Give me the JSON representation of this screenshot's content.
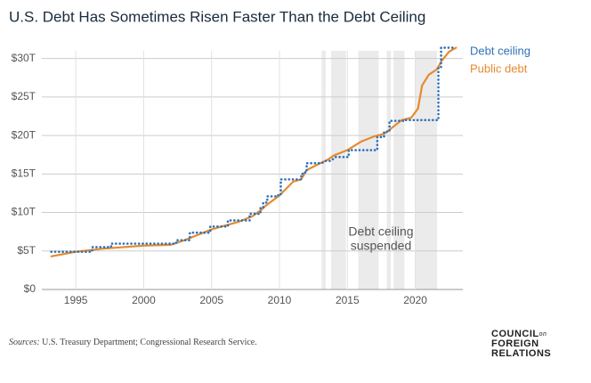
{
  "chart_data": {
    "type": "line",
    "title": "U.S. Debt Has Sometimes Risen Faster Than the Debt Ceiling",
    "xlim": [
      1992.5,
      2023.5
    ],
    "xticks": [
      1995,
      2000,
      2005,
      2010,
      2015,
      2020
    ],
    "ylim": [
      0,
      31
    ],
    "yticks": [
      {
        "value": 0,
        "label": "$0"
      },
      {
        "value": 5,
        "label": "$5T"
      },
      {
        "value": 10,
        "label": "$10T"
      },
      {
        "value": 15,
        "label": "$15T"
      },
      {
        "value": 20,
        "label": "$20T"
      },
      {
        "value": 25,
        "label": "$25T"
      },
      {
        "value": 30,
        "label": "$30T"
      }
    ],
    "grid": true,
    "shaded_periods": [
      [
        2013.1,
        2013.4
      ],
      [
        2013.8,
        2014.9
      ],
      [
        2015.8,
        2017.3
      ],
      [
        2017.9,
        2018.2
      ],
      [
        2018.4,
        2019.2
      ],
      [
        2020.0,
        2021.6
      ]
    ],
    "annotation": [
      "Debt ceiling",
      "suspended"
    ],
    "series": [
      {
        "name": "Debt ceiling",
        "color": "#2f72b8",
        "style": "dotted",
        "x": [
          1993.2,
          1996.2,
          1996.2,
          1997.6,
          1997.6,
          2002.4,
          2002.4,
          2003.4,
          2003.4,
          2004.9,
          2004.9,
          2006.2,
          2006.2,
          2007.8,
          2007.8,
          2008.6,
          2008.6,
          2008.8,
          2008.8,
          2009.1,
          2009.1,
          2009.9,
          2009.9,
          2010.1,
          2010.1,
          2011.6,
          2011.6,
          2011.7,
          2011.7,
          2012.0,
          2012.0,
          2013.1,
          2013.4,
          2013.8,
          2014.1,
          2015.1,
          2015.1,
          2017.2,
          2017.2,
          2017.7,
          2017.7,
          2018.1,
          2018.1,
          2019.1,
          2019.1,
          2021.7,
          2021.7,
          2021.9,
          2021.9,
          2023.0
        ],
        "values": [
          4.9,
          4.9,
          5.5,
          5.5,
          5.95,
          5.95,
          6.4,
          6.4,
          7.38,
          7.38,
          8.18,
          8.18,
          8.97,
          8.97,
          9.82,
          9.82,
          10.6,
          10.6,
          11.3,
          11.3,
          12.1,
          12.1,
          12.4,
          12.4,
          14.3,
          14.3,
          14.7,
          14.7,
          15.2,
          15.2,
          16.4,
          16.4,
          16.7,
          16.7,
          17.2,
          17.2,
          18.1,
          18.1,
          19.8,
          19.8,
          20.5,
          20.5,
          21.9,
          21.9,
          22.0,
          22.0,
          28.9,
          28.9,
          31.4,
          31.4
        ]
      },
      {
        "name": "Public debt",
        "color": "#e68a2e",
        "style": "solid",
        "x": [
          1993.2,
          1995,
          1996,
          1997,
          2000,
          2002,
          2003,
          2004,
          2005,
          2006,
          2007,
          2008,
          2008.7,
          2009,
          2010,
          2011,
          2011.6,
          2012,
          2013,
          2013.5,
          2014,
          2015,
          2016,
          2017,
          2017.7,
          2018,
          2019,
          2019.7,
          2020.2,
          2020.5,
          2021,
          2021.6,
          2021.9,
          2022.5,
          2023
        ],
        "values": [
          4.3,
          4.9,
          5.1,
          5.3,
          5.7,
          5.8,
          6.4,
          7.1,
          7.8,
          8.3,
          8.8,
          9.5,
          10.4,
          10.9,
          12.2,
          14.0,
          14.3,
          15.5,
          16.4,
          16.8,
          17.4,
          18.1,
          19.2,
          19.9,
          20.2,
          20.6,
          22.0,
          22.3,
          23.5,
          26.5,
          27.9,
          28.6,
          29.6,
          30.9,
          31.4
        ]
      }
    ],
    "source_label": "Sources:",
    "source": "U.S. Treasury Department; Congressional Research Service.",
    "logo": [
      "COUNCIL",
      "on",
      "FOREIGN",
      "RELATIONS"
    ]
  }
}
